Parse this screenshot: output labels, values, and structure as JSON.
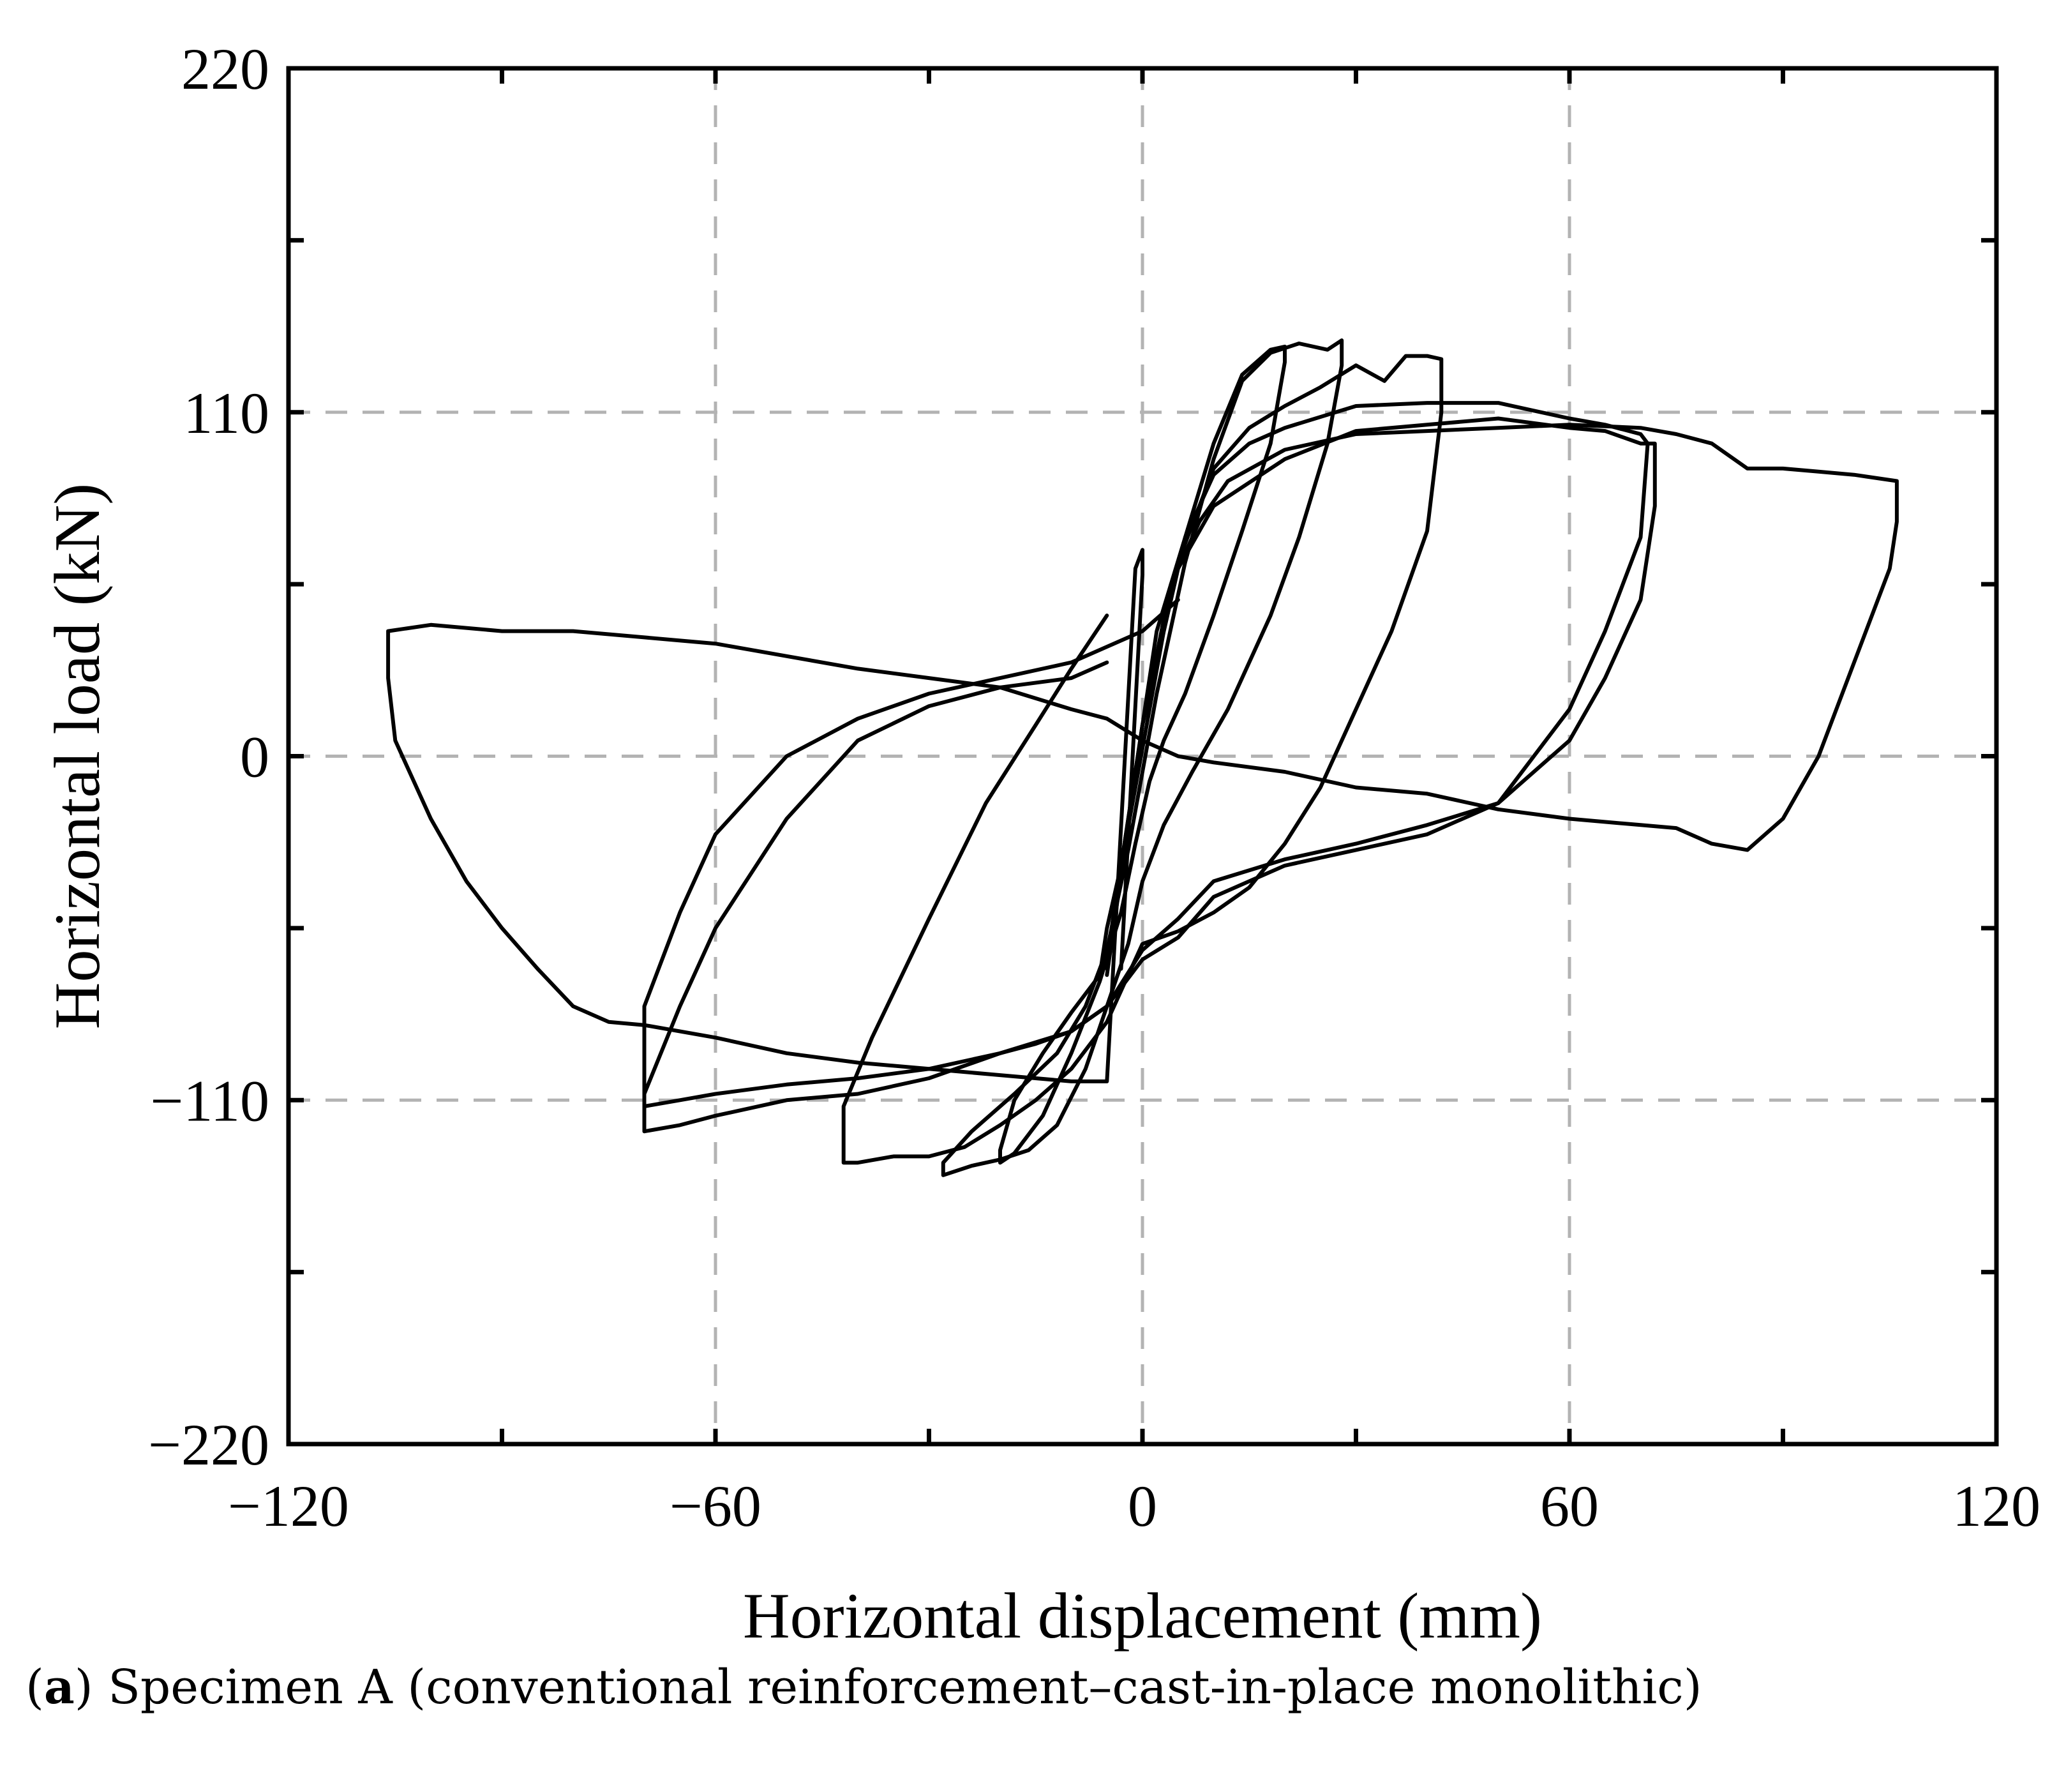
{
  "chart_data": {
    "type": "line",
    "title": "",
    "xlabel": "Horizontal displacement (mm)",
    "ylabel": "Horizontal load (kN)",
    "xlim": [
      -120,
      120
    ],
    "ylim": [
      -220,
      220
    ],
    "xticks": [
      -120,
      -60,
      0,
      60,
      120
    ],
    "yticks": [
      -220,
      -110,
      0,
      110,
      220
    ],
    "xtick_labels": [
      "−120",
      "−60",
      "0",
      "60",
      "120"
    ],
    "ytick_labels": [
      "−220",
      "−110",
      "0",
      "110",
      "220"
    ],
    "grid": "dashed",
    "line_color": "#000000",
    "grid_color": "#b3b3b3",
    "series": [
      {
        "x": [
          -5,
          -3,
          -1,
          1,
          3,
          6,
          10,
          14,
          18,
          20,
          20,
          18,
          14,
          10,
          6,
          3,
          1,
          -1,
          -3,
          -6,
          -10,
          -14,
          -18,
          -20,
          -20,
          -18,
          -14,
          -10,
          -6,
          -5
        ],
        "y": [
          -55,
          -35,
          -10,
          15,
          40,
          70,
          100,
          122,
          130,
          131,
          126,
          100,
          72,
          45,
          20,
          5,
          -8,
          -28,
          -50,
          -72,
          -95,
          -115,
          -127,
          -130,
          -126,
          -110,
          -95,
          -82,
          -70,
          -55
        ]
      },
      {
        "x": [
          -5,
          -2,
          2,
          6,
          10,
          14,
          18,
          22,
          26,
          28,
          28,
          26,
          22,
          18,
          12,
          7,
          3,
          0,
          -2,
          -5,
          -8,
          -12,
          -16,
          -20,
          -24,
          -28,
          -28,
          -24,
          -18,
          -12,
          -8,
          -5
        ],
        "y": [
          -62,
          -30,
          20,
          62,
          95,
          120,
          129,
          132,
          130,
          133,
          125,
          100,
          70,
          45,
          15,
          -5,
          -22,
          -40,
          -60,
          -80,
          -100,
          -118,
          -126,
          -129,
          -131,
          -134,
          -130,
          -120,
          -108,
          -95,
          -80,
          -62
        ]
      },
      {
        "x": [
          -5,
          0,
          5,
          10,
          15,
          20,
          25,
          30,
          34,
          37,
          40,
          42,
          42,
          40,
          35,
          30,
          25,
          20,
          15,
          10,
          5,
          0,
          -2,
          -5,
          -10,
          -15,
          -20,
          -25,
          -30,
          -35,
          -40,
          -42,
          -42,
          -38,
          -30,
          -22,
          -15,
          -10,
          -5
        ],
        "y": [
          -65,
          10,
          62,
          92,
          105,
          112,
          118,
          125,
          120,
          128,
          128,
          127,
          110,
          72,
          40,
          15,
          -10,
          -28,
          -42,
          -50,
          -56,
          -60,
          -70,
          -85,
          -100,
          -110,
          -118,
          -125,
          -128,
          -128,
          -130,
          -130,
          -112,
          -90,
          -52,
          -15,
          10,
          28,
          45
        ]
      },
      {
        "x": [
          -5,
          -2,
          2,
          6,
          10,
          15,
          20,
          30,
          40,
          50,
          60,
          65,
          70,
          71,
          70,
          65,
          60,
          50,
          40,
          30,
          20,
          10,
          5,
          0,
          -5,
          -10,
          -15,
          -20,
          -30,
          -40,
          -50,
          -60,
          -65,
          -70,
          -70,
          -65,
          -60,
          -50,
          -40,
          -30,
          -20,
          -10,
          0,
          5
        ],
        "y": [
          -65,
          -20,
          40,
          70,
          90,
          100,
          105,
          112,
          113,
          113,
          108,
          106,
          103,
          100,
          70,
          40,
          15,
          -15,
          -25,
          -30,
          -35,
          -45,
          -58,
          -65,
          -80,
          -88,
          -92,
          -95,
          -100,
          -103,
          -105,
          -108,
          -110,
          -112,
          -80,
          -50,
          -25,
          0,
          12,
          20,
          25,
          30,
          40,
          50
        ]
      },
      {
        "x": [
          -5,
          0,
          5,
          10,
          20,
          30,
          40,
          50,
          60,
          65,
          70,
          72,
          72,
          70,
          65,
          60,
          50,
          40,
          30,
          20,
          10,
          5,
          0,
          -5,
          -10,
          -20,
          -30,
          -40,
          -50,
          -60,
          -65,
          -70,
          -70,
          -65,
          -60,
          -50,
          -40,
          -30,
          -20,
          -10,
          -5
        ],
        "y": [
          -70,
          10,
          60,
          80,
          95,
          104,
          106,
          108,
          105,
          104,
          100,
          100,
          80,
          50,
          25,
          5,
          -15,
          -22,
          -28,
          -33,
          -40,
          -52,
          -62,
          -80,
          -88,
          -95,
          -103,
          -108,
          -110,
          -115,
          -118,
          -120,
          -108,
          -80,
          -55,
          -20,
          5,
          16,
          22,
          25,
          30
        ]
      },
      {
        "x": [
          -5,
          0,
          4,
          8,
          12,
          20,
          30,
          40,
          50,
          60,
          70,
          75,
          80,
          85,
          90,
          95,
          100,
          106,
          106,
          105,
          100,
          95,
          90,
          85,
          80,
          75,
          70,
          60,
          50,
          40,
          30,
          20,
          10,
          5,
          0,
          -5,
          -10,
          -20,
          -30,
          -40,
          -50,
          -60,
          -70,
          -80,
          -90,
          -100,
          -106,
          -106,
          -105,
          -100,
          -95,
          -90,
          -85,
          -80,
          -75,
          -70,
          -60,
          -50,
          -40,
          -30,
          -20,
          -10,
          -5,
          -1,
          0,
          0,
          -3
        ],
        "y": [
          -68,
          10,
          55,
          75,
          88,
          98,
          103,
          104,
          105,
          106,
          105,
          103,
          100,
          92,
          92,
          91,
          90,
          88,
          75,
          60,
          30,
          0,
          -20,
          -30,
          -28,
          -23,
          -22,
          -20,
          -17,
          -12,
          -10,
          -5,
          -2,
          0,
          5,
          12,
          15,
          22,
          25,
          28,
          32,
          36,
          38,
          40,
          40,
          42,
          40,
          25,
          5,
          -20,
          -40,
          -55,
          -68,
          -80,
          -85,
          -86,
          -90,
          -95,
          -98,
          -100,
          -102,
          -104,
          -104,
          60,
          66,
          58,
          -68
        ]
      }
    ]
  },
  "caption": {
    "label": "a",
    "text": " Specimen A (conventional reinforcement–cast-in-place monolithic)"
  }
}
